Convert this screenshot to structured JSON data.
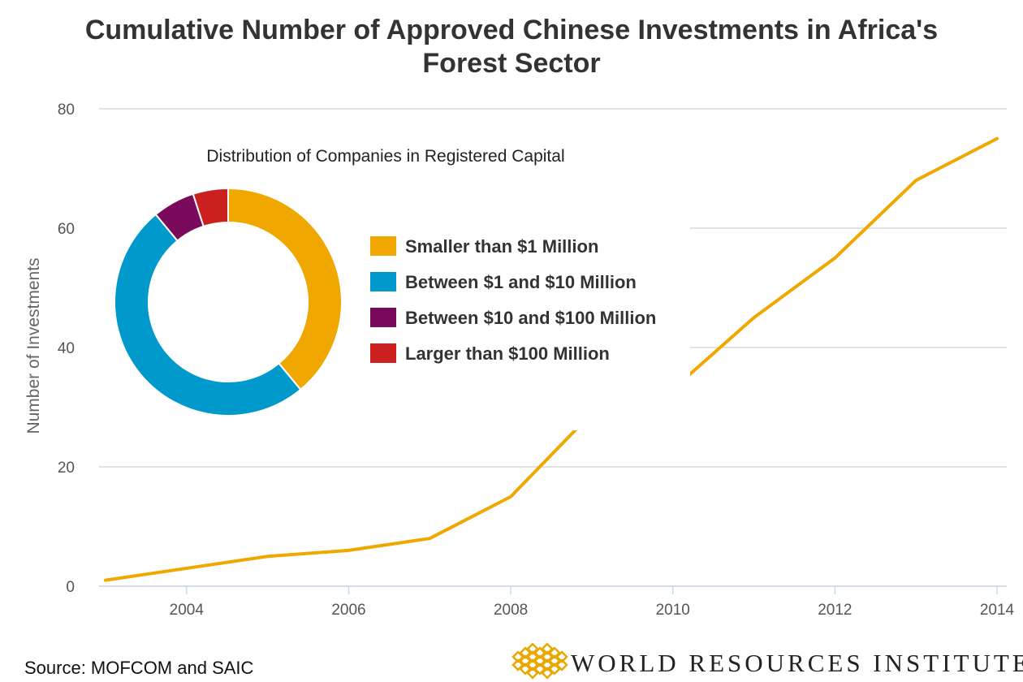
{
  "colors": {
    "line": "#f0a800",
    "grid": "#d9d9d9",
    "axis": "#ccd6eb",
    "logo": "#e9a800"
  },
  "chart_data": [
    {
      "type": "line",
      "title": "Cumulative Number of Approved Chinese Investments in Africa's Forest Sector",
      "title_lines": [
        "Cumulative Number of Approved Chinese Investments in Africa's",
        "Forest Sector"
      ],
      "ylabel": "Number of Investments",
      "xlabel": "",
      "xlim": [
        2003,
        2014
      ],
      "ylim": [
        0,
        80
      ],
      "x_ticks": [
        "2004",
        "2006",
        "2008",
        "2010",
        "2012",
        "2014"
      ],
      "y_ticks": [
        "0",
        "20",
        "40",
        "60",
        "80"
      ],
      "grid": true,
      "series": [
        {
          "x": [
            2003,
            2004,
            2005,
            2006,
            2007,
            2008,
            2009,
            2010,
            2011,
            2012,
            2013,
            2014
          ],
          "values": [
            1,
            3,
            5,
            6,
            8,
            15,
            29,
            33,
            45,
            55,
            68,
            75
          ]
        }
      ]
    },
    {
      "type": "pie",
      "title": "Distribution of Companies in Registered Capital",
      "legend_position": "right",
      "slices": [
        {
          "label": "Smaller than $1 Million",
          "value": 39,
          "color": "#f0a800"
        },
        {
          "label": "Between $1 and $10 Million",
          "value": 50,
          "color": "#0099cc"
        },
        {
          "label": "Between $10 and $100 Million",
          "value": 6,
          "color": "#7a0a5c"
        },
        {
          "label": "Larger than $100 Million",
          "value": 5,
          "color": "#cc2020"
        }
      ]
    }
  ],
  "footer": {
    "source": "Source: MOFCOM and SAIC",
    "logo_text": "WORLD RESOURCES INSTITUTE"
  }
}
